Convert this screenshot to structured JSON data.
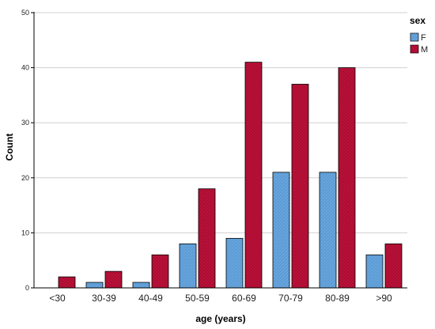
{
  "chart_data": {
    "type": "bar",
    "categories": [
      "<30",
      "30-39",
      "40-49",
      "50-59",
      "60-69",
      "70-79",
      "80-89",
      ">90"
    ],
    "series": [
      {
        "name": "F",
        "values": [
          0,
          1,
          1,
          8,
          9,
          21,
          21,
          6
        ],
        "color": "#5b9bd5"
      },
      {
        "name": "M",
        "values": [
          2,
          3,
          6,
          18,
          41,
          37,
          40,
          8
        ],
        "color": "#c0103a"
      }
    ],
    "xlabel": "age (years)",
    "ylabel": "Count",
    "ylim": [
      0,
      50
    ],
    "yticks": [
      0,
      10,
      20,
      30,
      40,
      50
    ],
    "grid": true,
    "legend": {
      "title": "sex",
      "position": "top-right"
    }
  }
}
